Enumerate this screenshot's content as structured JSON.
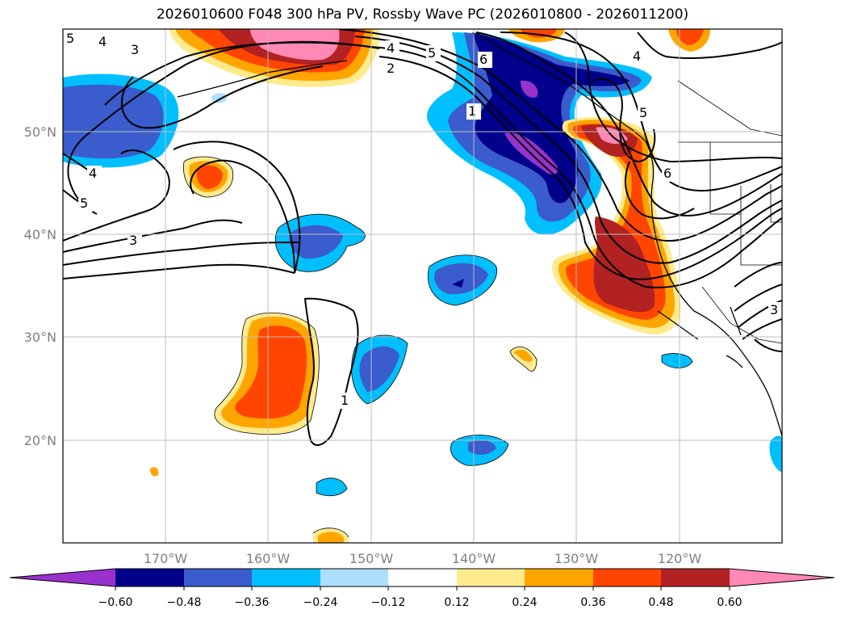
{
  "title": "2026010600 F048 300 hPa PV, Rossby Wave PC (2026010800 - 2026011200)",
  "longitude_labels": [
    "170°W",
    "160°W",
    "150°W",
    "140°W",
    "130°W",
    "120°W"
  ],
  "latitude_labels": [
    "50°N",
    "40°N",
    "30°N",
    "20°N"
  ],
  "extent": {
    "lon_min": -180,
    "lon_max": -110,
    "lat_min": 10,
    "lat_max": 60
  },
  "colorbar": {
    "tick_labels": [
      "−0.60",
      "−0.48",
      "−0.36",
      "−0.24",
      "−0.12",
      "0.12",
      "0.24",
      "0.36",
      "0.48",
      "0.60"
    ],
    "colors": [
      "#9932cc",
      "#00008b",
      "#3a5ccc",
      "#00bfff",
      "#addfff",
      "#ffffff",
      "#ffea8c",
      "#ffa500",
      "#ff4500",
      "#b22222",
      "#ff89b4"
    ]
  },
  "contour_labels": [
    "5",
    "4",
    "3",
    "4",
    "5",
    "3",
    "4",
    "2",
    "5",
    "6",
    "4",
    "1",
    "5",
    "6",
    "1",
    "3"
  ]
}
